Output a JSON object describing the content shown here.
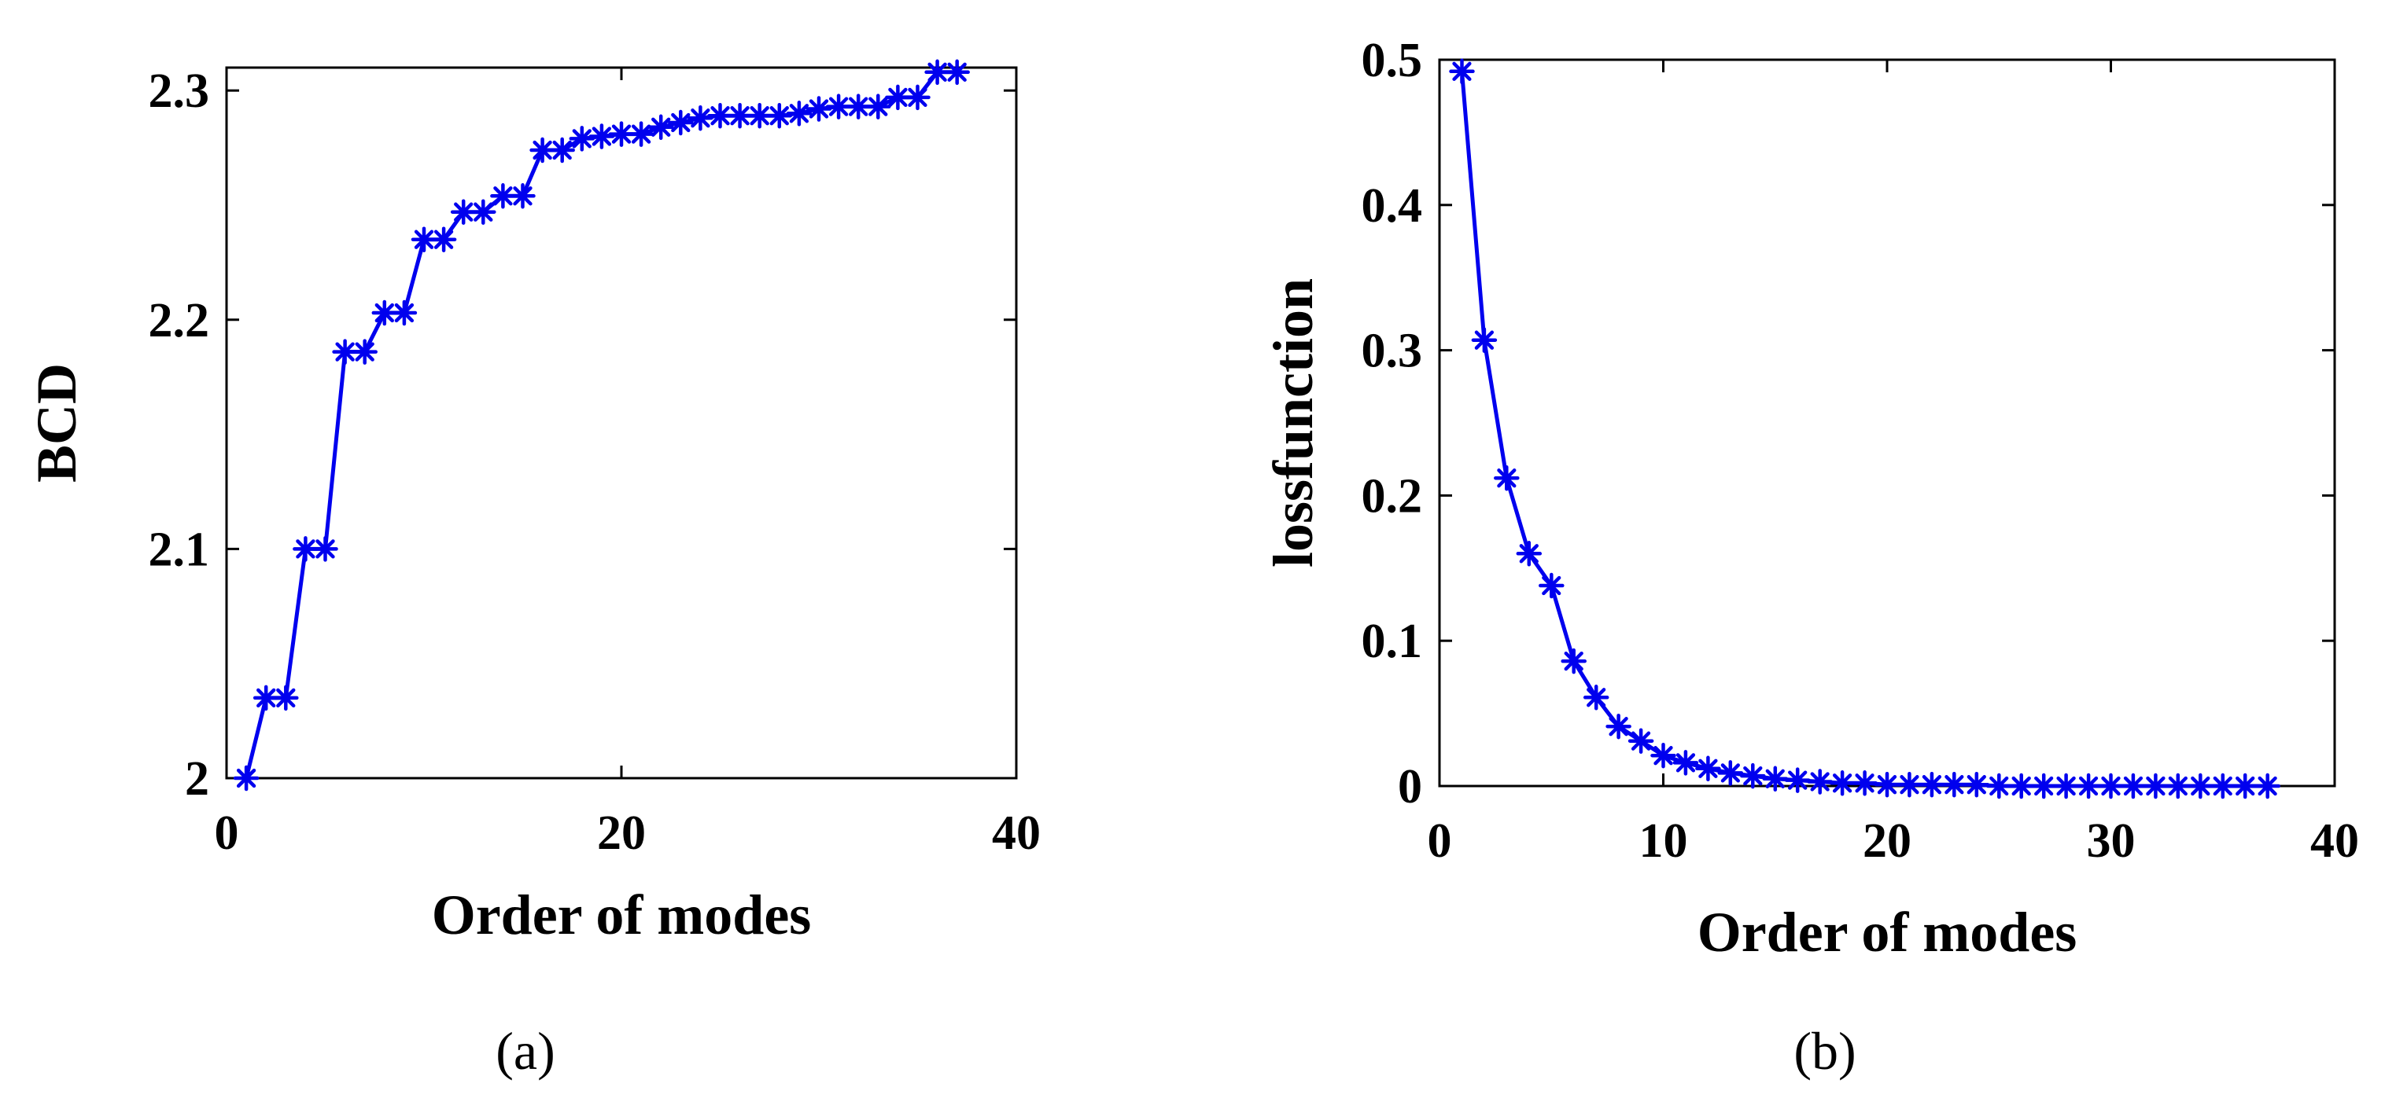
{
  "chart_data": [
    {
      "type": "line",
      "panel": "(a)",
      "title": "",
      "xlabel": "Order of modes",
      "ylabel": "BCD",
      "xlim": [
        0,
        40
      ],
      "ylim": [
        2.0,
        2.31
      ],
      "xticks": [
        0,
        20,
        40
      ],
      "yticks": [
        2,
        2.1,
        2.2,
        2.3
      ],
      "xtick_labels": [
        "0",
        "20",
        "40"
      ],
      "ytick_labels": [
        "2",
        "2.1",
        "2.2",
        "2.3"
      ],
      "grid": false,
      "marker": "asterisk",
      "color": "#0000ee",
      "series": [
        {
          "name": "BCD",
          "x": [
            1,
            2,
            3,
            4,
            5,
            6,
            7,
            8,
            9,
            10,
            11,
            12,
            13,
            14,
            15,
            16,
            17,
            18,
            19,
            20,
            21,
            22,
            23,
            24,
            25,
            26,
            27,
            28,
            29,
            30,
            31,
            32,
            33,
            34,
            35,
            36,
            37
          ],
          "y": [
            2.0,
            2.035,
            2.035,
            2.1,
            2.1,
            2.186,
            2.186,
            2.203,
            2.203,
            2.235,
            2.235,
            2.247,
            2.247,
            2.254,
            2.254,
            2.274,
            2.274,
            2.279,
            2.28,
            2.281,
            2.281,
            2.284,
            2.286,
            2.288,
            2.289,
            2.289,
            2.289,
            2.289,
            2.29,
            2.292,
            2.293,
            2.293,
            2.293,
            2.297,
            2.297,
            2.308,
            2.308
          ]
        }
      ]
    },
    {
      "type": "line",
      "panel": "(b)",
      "title": "",
      "xlabel": "Order of modes",
      "ylabel": "lossfunction",
      "xlim": [
        0,
        40
      ],
      "ylim": [
        0,
        0.5
      ],
      "xticks": [
        0,
        10,
        20,
        30,
        40
      ],
      "yticks": [
        0,
        0.1,
        0.2,
        0.3,
        0.4,
        0.5
      ],
      "xtick_labels": [
        "0",
        "10",
        "20",
        "30",
        "40"
      ],
      "ytick_labels": [
        "0",
        "0.1",
        "0.2",
        "0.3",
        "0.4",
        "0.5"
      ],
      "grid": false,
      "marker": "asterisk",
      "color": "#0000ee",
      "series": [
        {
          "name": "lossfunction",
          "x": [
            1,
            2,
            3,
            4,
            5,
            6,
            7,
            8,
            9,
            10,
            11,
            12,
            13,
            14,
            15,
            16,
            17,
            18,
            19,
            20,
            21,
            22,
            23,
            24,
            25,
            26,
            27,
            28,
            29,
            30,
            31,
            32,
            33,
            34,
            35,
            36,
            37
          ],
          "y": [
            0.492,
            0.307,
            0.212,
            0.16,
            0.138,
            0.086,
            0.061,
            0.041,
            0.031,
            0.021,
            0.016,
            0.012,
            0.009,
            0.007,
            0.005,
            0.004,
            0.003,
            0.002,
            0.002,
            0.001,
            0.001,
            0.001,
            0.001,
            0.001,
            0.0,
            0.0,
            0.0,
            0.0,
            0.0,
            0.0,
            0.0,
            0.0,
            0.0,
            0.0,
            0.0,
            0.0,
            0.0
          ]
        }
      ]
    }
  ],
  "captions": {
    "panel_a": "(a)",
    "panel_b": "(b)"
  }
}
